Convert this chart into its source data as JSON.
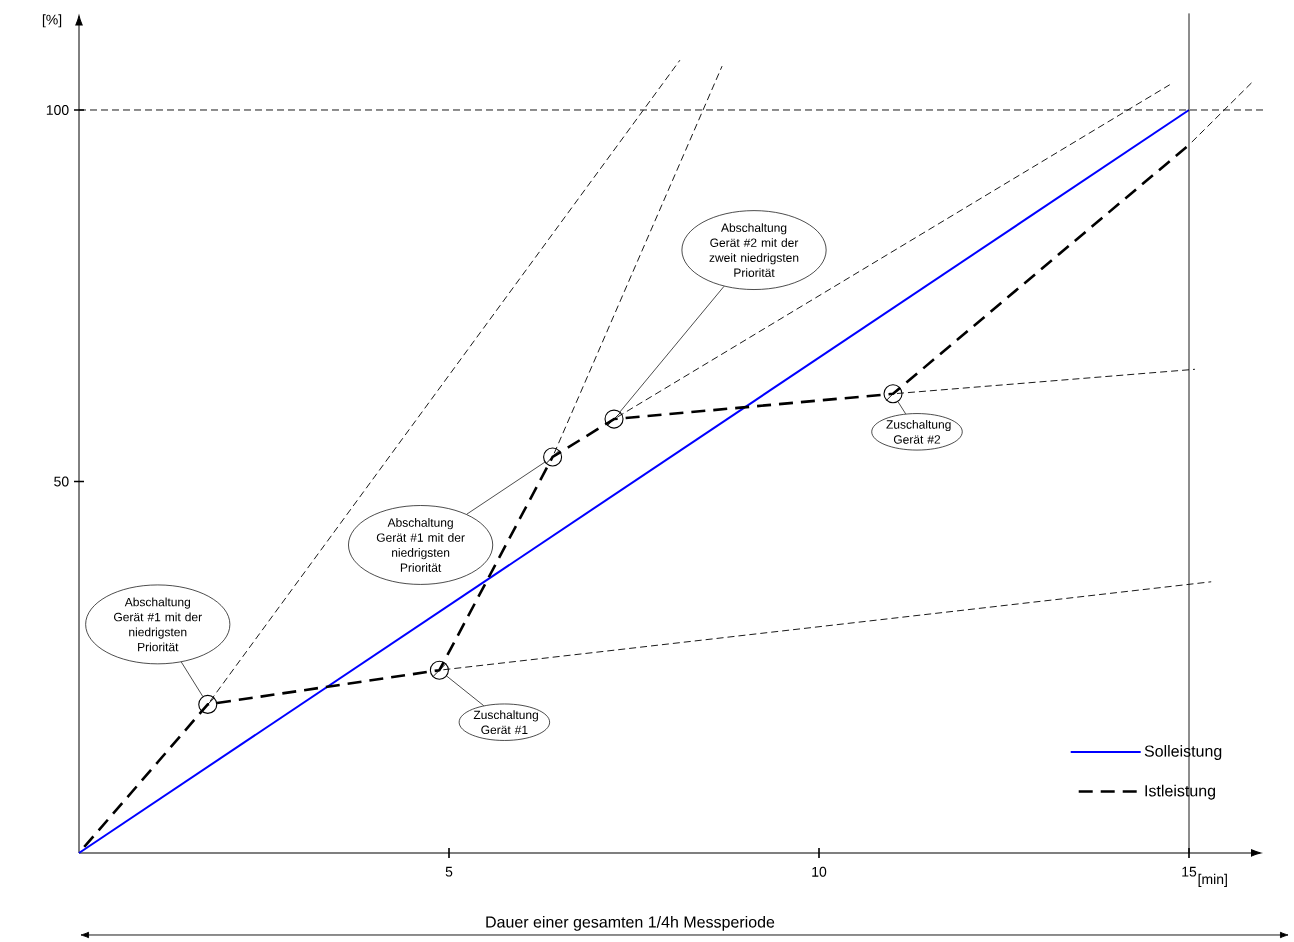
{
  "chart_data": {
    "type": "line",
    "xlabel": "[min]",
    "ylabel": "[%]",
    "xlim": [
      0,
      16
    ],
    "ylim": [
      0,
      113
    ],
    "xticks": [
      5,
      10,
      15
    ],
    "yticks": [
      50,
      100
    ],
    "legend": "bottom right",
    "series": [
      {
        "name": "Solleistung",
        "color": "#0000ff",
        "line_style": "solid",
        "x": [
          0,
          15
        ],
        "values": [
          0,
          100
        ]
      },
      {
        "name": "Istleistung",
        "color": "#000000",
        "line_style": "dashed",
        "x": [
          0,
          1.74,
          4.87,
          6.4,
          7.23,
          11.0,
          15.0
        ],
        "values": [
          0,
          20,
          24.6,
          53.3,
          58.4,
          61.8,
          95.3
        ]
      },
      {
        "color": "#000000",
        "line_style": "dashed",
        "x": [
          1.74,
          8.12
        ],
        "values": [
          20,
          106.7
        ]
      },
      {
        "color": "#000000",
        "line_style": "dashed",
        "x": [
          4.87,
          15.3
        ],
        "values": [
          24.6,
          36.5
        ]
      },
      {
        "color": "#000000",
        "line_style": "dashed",
        "x": [
          6.4,
          8.69
        ],
        "values": [
          53.3,
          105.9
        ]
      },
      {
        "color": "#000000",
        "line_style": "dashed",
        "x": [
          7.23,
          14.74
        ],
        "values": [
          58.4,
          103.4
        ]
      },
      {
        "color": "#000000",
        "line_style": "dashed",
        "x": [
          11.0,
          15.08
        ],
        "values": [
          61.8,
          65.1
        ]
      },
      {
        "color": "#000000",
        "line_style": "dashed",
        "x": [
          15.0,
          15.86
        ],
        "values": [
          95.3,
          103.8
        ]
      }
    ],
    "ref_lines": [
      {
        "axis": "y",
        "value": 100,
        "line_style": "dashed",
        "color": "#000000"
      },
      {
        "axis": "x",
        "value": 15,
        "line_style": "solid",
        "color": "#000000"
      }
    ],
    "annotations": [
      {
        "text": "Abschaltung Gerät #1 mit der niedrigsten Priorität",
        "x": 1.74,
        "y": 20
      },
      {
        "text": "Zuschaltung Gerät #1",
        "x": 4.87,
        "y": 24.6
      },
      {
        "text": "Abschaltung Gerät #1 mit der niedrigsten Priorität",
        "x": 6.4,
        "y": 53.3
      },
      {
        "text": "Abschaltung Gerät #2 mit der zweit niedrigsten Priorität",
        "x": 7.23,
        "y": 58.4
      },
      {
        "text": "Zuschaltung Gerät #2",
        "x": 11.0,
        "y": 61.8
      },
      "Dauer einer gesamten 1/4h Messperiode"
    ]
  }
}
